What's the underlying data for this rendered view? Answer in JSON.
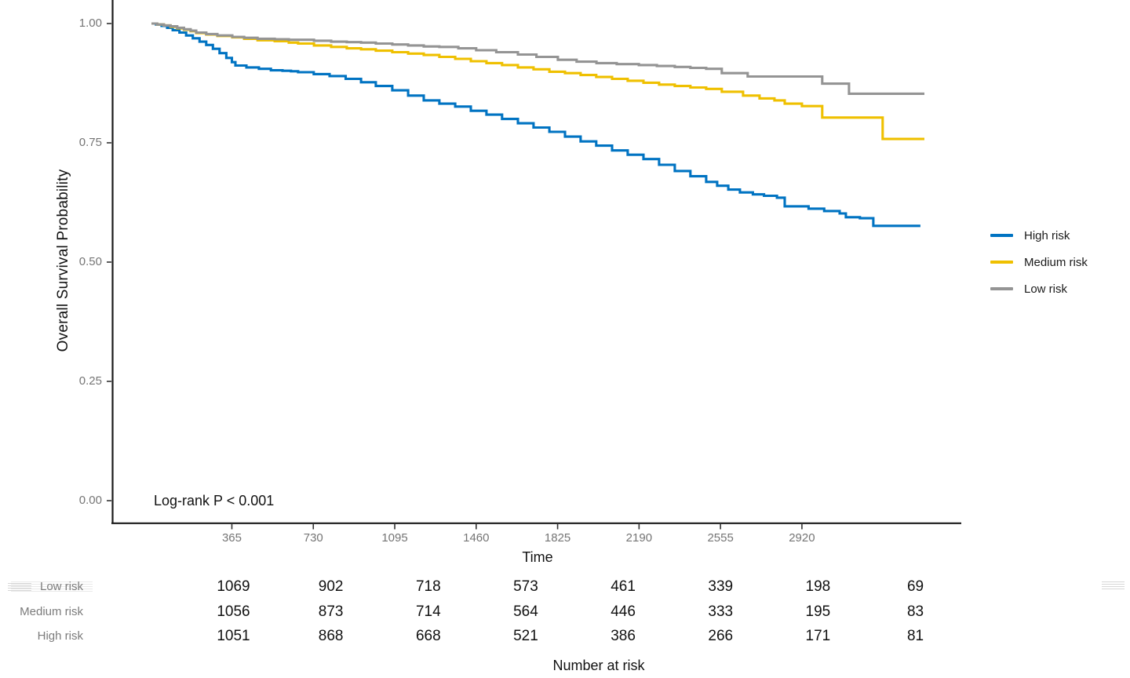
{
  "figure": {
    "y_axis_label": "Overall Survival Probability",
    "x_axis_label": "Time",
    "annotation": "Log-rank P < 0.001",
    "risk_table_title": "Number at risk"
  },
  "colors": {
    "high": "#0073C2",
    "medium": "#EFC000",
    "low": "#949494",
    "axis": "#1a1a1a",
    "tick": "#333333"
  },
  "legend": {
    "position": "right",
    "items": [
      {
        "label": "High risk",
        "color": "#0073C2"
      },
      {
        "label": "Medium risk",
        "color": "#EFC000"
      },
      {
        "label": "Low risk",
        "color": "#949494"
      }
    ]
  },
  "risk_table": {
    "title": "Number at risk",
    "rows": [
      {
        "label": "Low risk",
        "values": [
          "1069",
          "902",
          "718",
          "573",
          "461",
          "339",
          "198",
          "69"
        ]
      },
      {
        "label": "Medium risk",
        "values": [
          "1056",
          "873",
          "714",
          "564",
          "446",
          "333",
          "195",
          "83"
        ]
      },
      {
        "label": "High risk",
        "values": [
          "1051",
          "868",
          "668",
          "521",
          "386",
          "266",
          "171",
          "81"
        ]
      }
    ]
  },
  "chart_data": {
    "type": "line",
    "subtype": "kaplan_meier_step",
    "title": "",
    "xlabel": "Time",
    "ylabel": "Overall Survival Probability",
    "annotation": "Log-rank P < 0.001",
    "grid": false,
    "legend_position": "right",
    "x_ticks": [
      365,
      730,
      1095,
      1460,
      1825,
      2190,
      2555,
      2920
    ],
    "x_tick_labels": [
      "365",
      "730",
      "1095",
      "1460",
      "1825",
      "2190",
      "2555",
      "2920"
    ],
    "y_ticks": [
      0.0,
      0.25,
      0.5,
      0.75,
      1.0
    ],
    "y_tick_labels": [
      "0.00",
      "0.25",
      "0.50",
      "0.75",
      "1.00"
    ],
    "xlim": [
      -171.3,
      3634.3
    ],
    "ylim": [
      -0.0493,
      1.0493
    ],
    "series": [
      {
        "name": "High risk",
        "color": "#0073C2",
        "points": [
          [
            5,
            1.0
          ],
          [
            25,
            0.998
          ],
          [
            50,
            0.995
          ],
          [
            75,
            0.991
          ],
          [
            100,
            0.986
          ],
          [
            130,
            0.981
          ],
          [
            160,
            0.975
          ],
          [
            190,
            0.969
          ],
          [
            220,
            0.962
          ],
          [
            250,
            0.955
          ],
          [
            280,
            0.947
          ],
          [
            310,
            0.938
          ],
          [
            340,
            0.928
          ],
          [
            365,
            0.919
          ],
          [
            381,
            0.912
          ],
          [
            430,
            0.908
          ],
          [
            486,
            0.905
          ],
          [
            540,
            0.902
          ],
          [
            592,
            0.901
          ],
          [
            630,
            0.9
          ],
          [
            662,
            0.898
          ],
          [
            732,
            0.894
          ],
          [
            803,
            0.89
          ],
          [
            875,
            0.884
          ],
          [
            944,
            0.877
          ],
          [
            1010,
            0.869
          ],
          [
            1084,
            0.86
          ],
          [
            1155,
            0.849
          ],
          [
            1225,
            0.839
          ],
          [
            1295,
            0.832
          ],
          [
            1366,
            0.826
          ],
          [
            1436,
            0.817
          ],
          [
            1506,
            0.809
          ],
          [
            1576,
            0.8
          ],
          [
            1647,
            0.791
          ],
          [
            1717,
            0.782
          ],
          [
            1788,
            0.773
          ],
          [
            1858,
            0.763
          ],
          [
            1928,
            0.753
          ],
          [
            1998,
            0.744
          ],
          [
            2069,
            0.734
          ],
          [
            2139,
            0.725
          ],
          [
            2210,
            0.716
          ],
          [
            2280,
            0.704
          ],
          [
            2350,
            0.691
          ],
          [
            2420,
            0.68
          ],
          [
            2491,
            0.668
          ],
          [
            2540,
            0.66
          ],
          [
            2590,
            0.652
          ],
          [
            2642,
            0.646
          ],
          [
            2700,
            0.642
          ],
          [
            2750,
            0.639
          ],
          [
            2808,
            0.635
          ],
          [
            2843,
            0.617
          ],
          [
            2950,
            0.612
          ],
          [
            3020,
            0.607
          ],
          [
            3089,
            0.602
          ],
          [
            3117,
            0.594
          ],
          [
            3180,
            0.592
          ],
          [
            3240,
            0.576
          ],
          [
            3451,
            0.576
          ]
        ]
      },
      {
        "name": "Medium risk",
        "color": "#EFC000",
        "points": [
          [
            5,
            1.0
          ],
          [
            30,
            0.998
          ],
          [
            60,
            0.996
          ],
          [
            90,
            0.993
          ],
          [
            120,
            0.99
          ],
          [
            150,
            0.987
          ],
          [
            180,
            0.984
          ],
          [
            205,
            0.98
          ],
          [
            250,
            0.977
          ],
          [
            300,
            0.974
          ],
          [
            367,
            0.971
          ],
          [
            420,
            0.968
          ],
          [
            480,
            0.965
          ],
          [
            557,
            0.963
          ],
          [
            620,
            0.96
          ],
          [
            662,
            0.958
          ],
          [
            733,
            0.954
          ],
          [
            810,
            0.951
          ],
          [
            880,
            0.948
          ],
          [
            944,
            0.946
          ],
          [
            1010,
            0.943
          ],
          [
            1084,
            0.94
          ],
          [
            1155,
            0.937
          ],
          [
            1225,
            0.934
          ],
          [
            1295,
            0.93
          ],
          [
            1366,
            0.926
          ],
          [
            1436,
            0.921
          ],
          [
            1506,
            0.917
          ],
          [
            1576,
            0.913
          ],
          [
            1647,
            0.908
          ],
          [
            1717,
            0.904
          ],
          [
            1788,
            0.899
          ],
          [
            1858,
            0.896
          ],
          [
            1928,
            0.892
          ],
          [
            1998,
            0.888
          ],
          [
            2069,
            0.884
          ],
          [
            2139,
            0.88
          ],
          [
            2210,
            0.876
          ],
          [
            2280,
            0.872
          ],
          [
            2350,
            0.869
          ],
          [
            2420,
            0.866
          ],
          [
            2491,
            0.863
          ],
          [
            2561,
            0.857
          ],
          [
            2656,
            0.849
          ],
          [
            2730,
            0.843
          ],
          [
            2797,
            0.839
          ],
          [
            2843,
            0.832
          ],
          [
            2920,
            0.827
          ],
          [
            3011,
            0.803
          ],
          [
            3282,
            0.758
          ],
          [
            3469,
            0.758
          ]
        ]
      },
      {
        "name": "Low risk",
        "color": "#949494",
        "points": [
          [
            5,
            1.0
          ],
          [
            30,
            0.998
          ],
          [
            60,
            0.996
          ],
          [
            90,
            0.994
          ],
          [
            120,
            0.991
          ],
          [
            150,
            0.988
          ],
          [
            180,
            0.985
          ],
          [
            205,
            0.981
          ],
          [
            250,
            0.978
          ],
          [
            300,
            0.975
          ],
          [
            367,
            0.972
          ],
          [
            420,
            0.97
          ],
          [
            480,
            0.968
          ],
          [
            557,
            0.967
          ],
          [
            620,
            0.966
          ],
          [
            662,
            0.966
          ],
          [
            733,
            0.964
          ],
          [
            810,
            0.962
          ],
          [
            880,
            0.961
          ],
          [
            944,
            0.96
          ],
          [
            1010,
            0.958
          ],
          [
            1084,
            0.956
          ],
          [
            1155,
            0.954
          ],
          [
            1225,
            0.952
          ],
          [
            1295,
            0.951
          ],
          [
            1380,
            0.948
          ],
          [
            1460,
            0.944
          ],
          [
            1550,
            0.94
          ],
          [
            1647,
            0.935
          ],
          [
            1730,
            0.93
          ],
          [
            1826,
            0.924
          ],
          [
            1910,
            0.92
          ],
          [
            1999,
            0.917
          ],
          [
            2090,
            0.915
          ],
          [
            2189,
            0.913
          ],
          [
            2270,
            0.911
          ],
          [
            2350,
            0.909
          ],
          [
            2420,
            0.907
          ],
          [
            2491,
            0.905
          ],
          [
            2561,
            0.896
          ],
          [
            2677,
            0.889
          ],
          [
            2850,
            0.889
          ],
          [
            3011,
            0.874
          ],
          [
            3131,
            0.853
          ],
          [
            3469,
            0.853
          ]
        ]
      }
    ]
  }
}
